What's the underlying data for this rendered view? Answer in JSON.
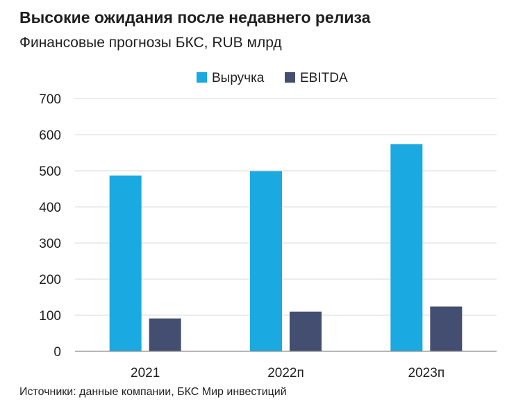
{
  "title": "Высокие ожидания после недавнего релиза",
  "subtitle": "Финансовые прогнозы БКС, RUB млрд",
  "source": "Источники: данные компании, БКС Мир инвестиций",
  "colors": {
    "revenue": "#1aa9e0",
    "ebitda": "#434e70",
    "grid": "#d9d9d9",
    "axis": "#8c8c8c"
  },
  "chart_data": {
    "type": "bar",
    "categories": [
      "2021",
      "2022п",
      "2023п"
    ],
    "series": [
      {
        "name": "Выручка",
        "values": [
          487,
          499,
          574
        ]
      },
      {
        "name": "EBITDA",
        "values": [
          91,
          110,
          124
        ]
      }
    ],
    "ylim": [
      0,
      700
    ],
    "yticks": [
      0,
      100,
      200,
      300,
      400,
      500,
      600,
      700
    ],
    "grid": true,
    "legend_position": "top-center"
  }
}
